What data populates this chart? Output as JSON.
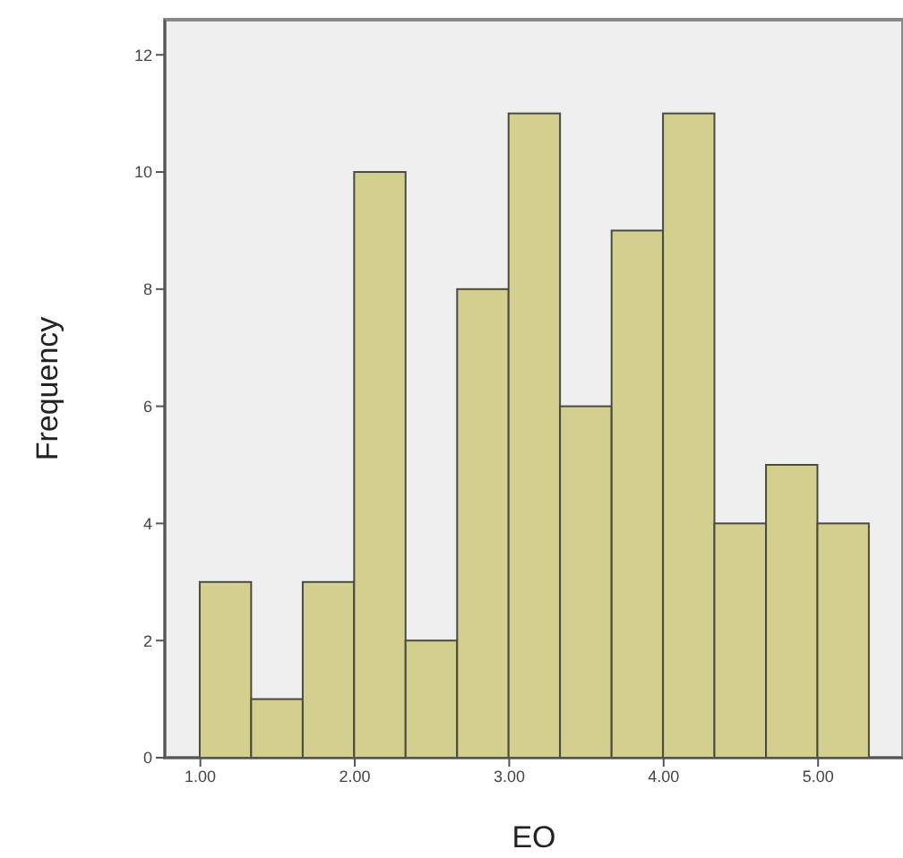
{
  "chart_data": {
    "type": "histogram",
    "xlabel": "EO",
    "ylabel": "Frequency",
    "bins": [
      1,
      1.333,
      1.667,
      2,
      2.333,
      2.667,
      3,
      3.333,
      3.667,
      4,
      4.333,
      4.667,
      5,
      5.333
    ],
    "values": [
      3,
      1,
      3,
      10,
      2,
      8,
      11,
      6,
      9,
      11,
      4,
      5,
      4
    ],
    "color": "#d3d08f",
    "xlim": [
      0.77,
      5.55
    ],
    "xticks": [
      {
        "value": 1,
        "label": "1.00"
      },
      {
        "value": 2,
        "label": "2.00"
      },
      {
        "value": 3,
        "label": "3.00"
      },
      {
        "value": 4,
        "label": "4.00"
      },
      {
        "value": 5,
        "label": "5.00"
      }
    ],
    "ylim": [
      0,
      12.6
    ],
    "yticks": [
      0,
      2,
      4,
      6,
      8,
      10,
      12
    ]
  }
}
